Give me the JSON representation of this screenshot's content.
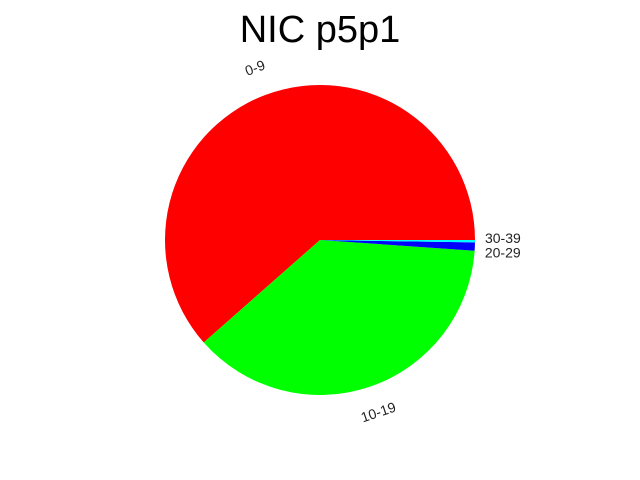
{
  "chart_data": {
    "type": "pie",
    "title": "NIC p5p1",
    "categories": [
      "0-9",
      "10-19",
      "20-29",
      "30-39"
    ],
    "values": [
      61.5,
      37.4,
      0.85,
      0.25
    ],
    "colors": [
      "#ff0000",
      "#00ff00",
      "#0000ff",
      "#00ffff"
    ],
    "start": "east",
    "direction": "counterclockwise",
    "legend": "none"
  }
}
